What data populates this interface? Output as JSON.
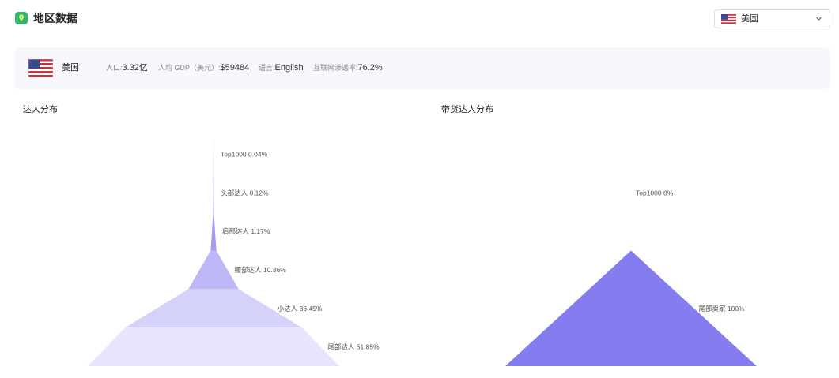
{
  "header": {
    "title": "地区数据",
    "icon": "map-pin-icon",
    "accent_color": "#2fb86e"
  },
  "country_select": {
    "selected": "美国",
    "flag": "us-flag-icon"
  },
  "country_info": {
    "name": "美国",
    "flag": "us-flag-icon",
    "population_label": "人口:",
    "population_value": "3.32亿",
    "gdp_label": "人均 GDP（美元）:",
    "gdp_value": "$59484",
    "language_label": "语言:",
    "language_value": "English",
    "internet_label": "互联网渗透率:",
    "internet_value": "76.2%"
  },
  "chart_data": [
    {
      "type": "funnel",
      "title": "达人分布",
      "sort": "ascending",
      "categories": [
        "Top1000",
        "头部达人",
        "肩部达人",
        "腰部达人",
        "小达人",
        "尾部达人"
      ],
      "values": [
        0.04,
        0.12,
        1.17,
        10.36,
        36.45,
        51.85
      ],
      "unit": "%",
      "colors": [
        "#7d72ef",
        "#8b81f0",
        "#a49cf3",
        "#bcb7f7",
        "#d5d2f9",
        "#e7e5fc"
      ]
    },
    {
      "type": "funnel",
      "title": "带货达人分布",
      "sort": "ascending",
      "categories": [
        "Top1000",
        "尾部卖家"
      ],
      "values": [
        0,
        100
      ],
      "unit": "%",
      "colors": [
        "#6c64ec",
        "#857cf0"
      ]
    }
  ]
}
